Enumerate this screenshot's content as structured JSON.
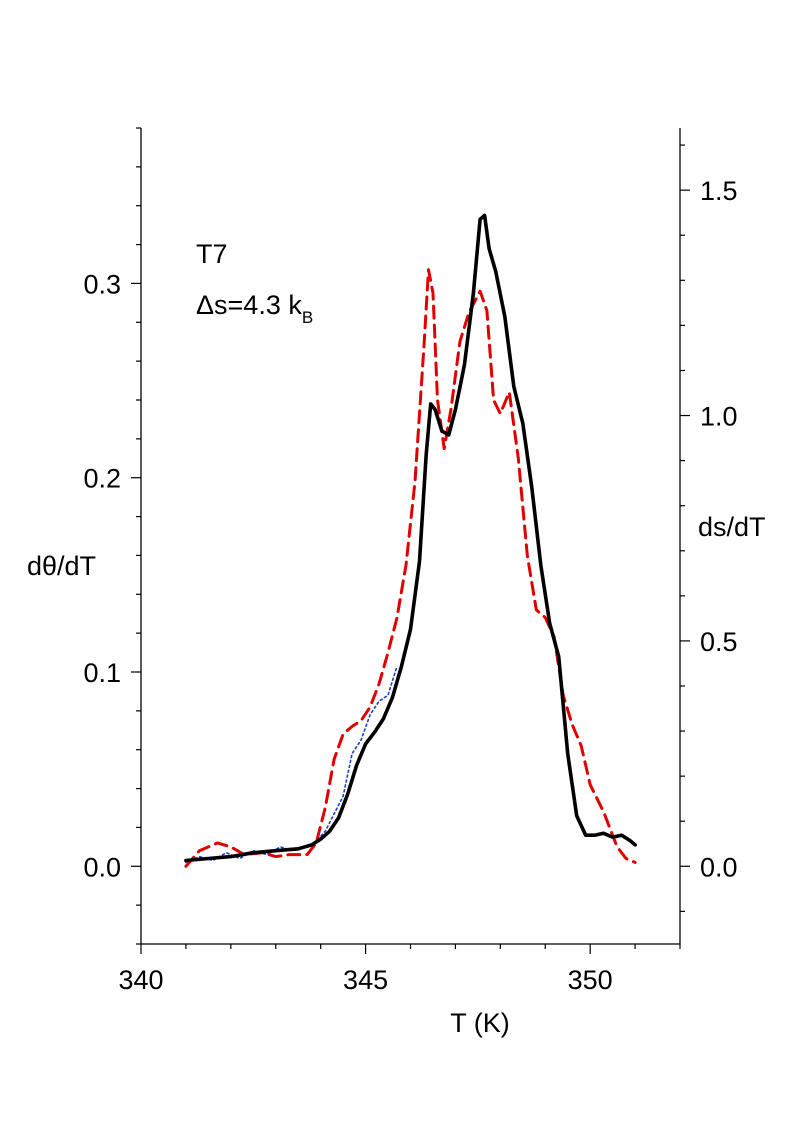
{
  "chart_data": {
    "type": "line",
    "xlabel": "T (K)",
    "ylabel_left": "dθ/dT",
    "ylabel_right": "ds/dT",
    "xlim": [
      340,
      352
    ],
    "ylim_left": [
      -0.04,
      0.38
    ],
    "ylim_right": [
      -0.1724,
      1.6379
    ],
    "x_ticks": [
      "340",
      "345",
      "350"
    ],
    "y_left_ticks": [
      "0.0",
      "0.1",
      "0.2",
      "0.3"
    ],
    "y_right_ticks": [
      "0.0",
      "0.5",
      "1.0",
      "1.5"
    ],
    "annotation": {
      "line1": "T7",
      "line2_prefix": "Δs=4.3 k",
      "line2_sub": "B"
    },
    "series": [
      {
        "axis": "left",
        "color": "#000000",
        "style": "solid",
        "points": [
          [
            341.0,
            0.003
          ],
          [
            341.5,
            0.004
          ],
          [
            342.0,
            0.005
          ],
          [
            342.5,
            0.007
          ],
          [
            343.0,
            0.008
          ],
          [
            343.5,
            0.009
          ],
          [
            343.8,
            0.011
          ],
          [
            344.0,
            0.014
          ],
          [
            344.2,
            0.018
          ],
          [
            344.4,
            0.025
          ],
          [
            344.6,
            0.037
          ],
          [
            344.8,
            0.052
          ],
          [
            345.0,
            0.063
          ],
          [
            345.2,
            0.069
          ],
          [
            345.4,
            0.076
          ],
          [
            345.6,
            0.087
          ],
          [
            345.8,
            0.103
          ],
          [
            346.0,
            0.122
          ],
          [
            346.2,
            0.157
          ],
          [
            346.35,
            0.212
          ],
          [
            346.45,
            0.238
          ],
          [
            346.55,
            0.235
          ],
          [
            346.7,
            0.224
          ],
          [
            346.85,
            0.222
          ],
          [
            347.0,
            0.235
          ],
          [
            347.2,
            0.258
          ],
          [
            347.4,
            0.295
          ],
          [
            347.55,
            0.333
          ],
          [
            347.65,
            0.335
          ],
          [
            347.75,
            0.318
          ],
          [
            347.9,
            0.306
          ],
          [
            348.1,
            0.283
          ],
          [
            348.3,
            0.247
          ],
          [
            348.5,
            0.228
          ],
          [
            348.7,
            0.195
          ],
          [
            348.9,
            0.155
          ],
          [
            349.1,
            0.125
          ],
          [
            349.3,
            0.108
          ],
          [
            349.5,
            0.058
          ],
          [
            349.7,
            0.026
          ],
          [
            349.9,
            0.016
          ],
          [
            350.1,
            0.016
          ],
          [
            350.3,
            0.017
          ],
          [
            350.5,
            0.015
          ],
          [
            350.7,
            0.016
          ],
          [
            350.9,
            0.013
          ],
          [
            351.0,
            0.011
          ]
        ]
      },
      {
        "axis": "left",
        "color": "#e00000",
        "style": "dashed",
        "points": [
          [
            341.0,
            0.0
          ],
          [
            341.3,
            0.008
          ],
          [
            341.7,
            0.012
          ],
          [
            342.0,
            0.01
          ],
          [
            342.3,
            0.006
          ],
          [
            342.7,
            0.007
          ],
          [
            343.0,
            0.005
          ],
          [
            343.3,
            0.006
          ],
          [
            343.7,
            0.006
          ],
          [
            343.9,
            0.012
          ],
          [
            344.1,
            0.03
          ],
          [
            344.3,
            0.055
          ],
          [
            344.5,
            0.068
          ],
          [
            344.7,
            0.072
          ],
          [
            344.9,
            0.075
          ],
          [
            345.1,
            0.082
          ],
          [
            345.3,
            0.094
          ],
          [
            345.5,
            0.11
          ],
          [
            345.7,
            0.128
          ],
          [
            345.9,
            0.155
          ],
          [
            346.1,
            0.198
          ],
          [
            346.3,
            0.268
          ],
          [
            346.4,
            0.307
          ],
          [
            346.5,
            0.295
          ],
          [
            346.6,
            0.24
          ],
          [
            346.75,
            0.215
          ],
          [
            346.9,
            0.235
          ],
          [
            347.1,
            0.27
          ],
          [
            347.3,
            0.285
          ],
          [
            347.55,
            0.296
          ],
          [
            347.7,
            0.286
          ],
          [
            347.85,
            0.24
          ],
          [
            348.0,
            0.233
          ],
          [
            348.2,
            0.244
          ],
          [
            348.4,
            0.21
          ],
          [
            348.6,
            0.16
          ],
          [
            348.8,
            0.132
          ],
          [
            349.0,
            0.128
          ],
          [
            349.2,
            0.118
          ],
          [
            349.4,
            0.088
          ],
          [
            349.6,
            0.073
          ],
          [
            349.8,
            0.062
          ],
          [
            350.0,
            0.042
          ],
          [
            350.3,
            0.028
          ],
          [
            350.6,
            0.01
          ],
          [
            350.8,
            0.004
          ],
          [
            351.0,
            0.002
          ]
        ]
      },
      {
        "axis": "left",
        "color": "#1a3cdc",
        "style": "dotted",
        "points": [
          [
            341.0,
            0.002
          ],
          [
            341.3,
            0.005
          ],
          [
            341.6,
            0.003
          ],
          [
            341.9,
            0.007
          ],
          [
            342.2,
            0.004
          ],
          [
            342.5,
            0.008
          ],
          [
            342.8,
            0.006
          ],
          [
            343.1,
            0.01
          ],
          [
            343.4,
            0.008
          ],
          [
            343.7,
            0.01
          ],
          [
            343.9,
            0.013
          ],
          [
            344.1,
            0.018
          ],
          [
            344.3,
            0.027
          ],
          [
            344.5,
            0.036
          ],
          [
            344.7,
            0.058
          ],
          [
            344.9,
            0.065
          ],
          [
            345.1,
            0.078
          ],
          [
            345.3,
            0.085
          ],
          [
            345.5,
            0.088
          ],
          [
            345.7,
            0.103
          ]
        ]
      }
    ]
  }
}
